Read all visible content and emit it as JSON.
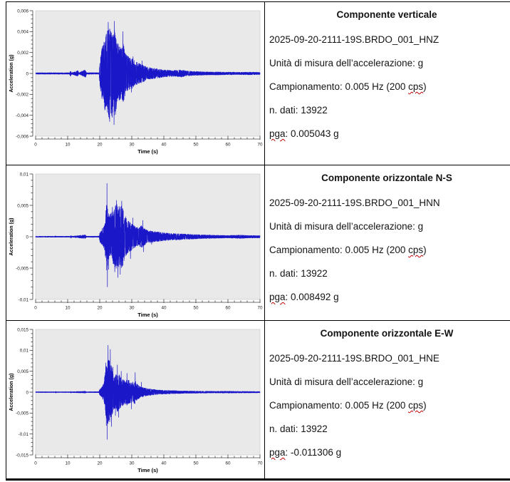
{
  "colors": {
    "table_border": "#000000",
    "waveform_blue": "#1a17c9",
    "plot_background": "#e9e9e9",
    "spellcheck_red": "#c00000",
    "text": "#141414"
  },
  "rows": [
    {
      "info": {
        "title": "Componente verticale",
        "filename": "2025-09-20-2111-19S.BRDO_001_HNZ",
        "unit": "Unità di misura dell’accelerazione: g",
        "sampling_prefix": "Campionamento: 0.005 Hz (200 ",
        "sampling_word": "cps",
        "sampling_suffix": ")",
        "n_dati": "n. dati: 13922",
        "pga_word": "pga",
        "pga_rest": ": 0.005043 g"
      }
    },
    {
      "info": {
        "title": "Componente orizzontale N-S",
        "filename": "2025-09-20-2111-19S.BRDO_001_HNN",
        "unit": "Unità di misura dell’accelerazione: g",
        "sampling_prefix": "Campionamento: 0.005 Hz (200 ",
        "sampling_word": "cps",
        "sampling_suffix": ")",
        "n_dati": "n. dati: 13922",
        "pga_word": "pga",
        "pga_rest": ": 0.008492 g"
      }
    },
    {
      "info": {
        "title": "Componente orizzontale E-W",
        "filename": "2025-09-20-2111-19S.BRDO_001_HNE",
        "unit": "Unità di misura dell’accelerazione: g",
        "sampling_prefix": "Campionamento: 0.005 Hz (200 ",
        "sampling_word": "cps",
        "sampling_suffix": ")",
        "n_dati": "n. dati: 13922",
        "pga_word": "pga",
        "pga_rest": ": -0.011306 g"
      }
    }
  ],
  "chart_data": [
    {
      "type": "line",
      "component": "vertical HNZ",
      "xlabel": "Time (s)",
      "ylabel": "Acceleration (g)",
      "xlim": [
        0,
        70
      ],
      "ylim": [
        -0.006,
        0.006
      ],
      "xtick_values": [
        0,
        10,
        20,
        30,
        40,
        50,
        60,
        70
      ],
      "xtick_labels": [
        "0",
        "10",
        "20",
        "30",
        "40",
        "50",
        "60",
        "70"
      ],
      "x_minor_step": 2,
      "ytick_values": [
        0.006,
        0.004,
        0.002,
        0,
        -0.002,
        -0.004,
        -0.006
      ],
      "ytick_labels": [
        "0,006",
        "0,004",
        "0,002",
        "0",
        "-0,002",
        "-0,004",
        "-0,006"
      ],
      "y_minor_per_major": 4,
      "pga_g": 0.005043,
      "line_color": "#1a17c9",
      "plot_bg": "#e9e9e9",
      "grid": false,
      "legend": false,
      "seed": 11,
      "dt": 0.02,
      "envelope": [
        [
          0,
          7e-05
        ],
        [
          10.6,
          7e-05
        ],
        [
          10.9,
          0.0003
        ],
        [
          11.2,
          7e-05
        ],
        [
          13.2,
          0.00028
        ],
        [
          13.5,
          7e-05
        ],
        [
          15.6,
          0.00038
        ],
        [
          15.9,
          7e-05
        ],
        [
          19.8,
          8e-05
        ],
        [
          20.05,
          0.0012
        ],
        [
          20.5,
          0.0022
        ],
        [
          21.2,
          0.003
        ],
        [
          22,
          0.0038
        ],
        [
          22.8,
          0.0044
        ],
        [
          23.5,
          0.0042
        ],
        [
          24.2,
          0.0038
        ],
        [
          24.7,
          0.0044
        ],
        [
          25.3,
          0.0032
        ],
        [
          26,
          0.0026
        ],
        [
          26.8,
          0.0024
        ],
        [
          27.4,
          0.003
        ],
        [
          28,
          0.0019
        ],
        [
          29,
          0.0016
        ],
        [
          30,
          0.0015
        ],
        [
          31,
          0.0012
        ],
        [
          32,
          0.001
        ],
        [
          33,
          0.0009
        ],
        [
          34,
          0.00075
        ],
        [
          35,
          0.0006
        ],
        [
          36,
          0.00055
        ],
        [
          37.5,
          0.00048
        ],
        [
          39,
          0.0004
        ],
        [
          40,
          0.00035
        ],
        [
          42,
          0.0003
        ],
        [
          44,
          0.00032
        ],
        [
          45.5,
          0.00035
        ],
        [
          47,
          0.00025
        ],
        [
          49,
          0.0002
        ],
        [
          51,
          0.00018
        ],
        [
          53,
          0.00015
        ],
        [
          55,
          0.00014
        ],
        [
          57,
          0.00015
        ],
        [
          59,
          0.00012
        ],
        [
          61,
          0.00013
        ],
        [
          63,
          0.00011
        ],
        [
          65,
          0.00012
        ],
        [
          67,
          0.00013
        ],
        [
          70,
          0.0001
        ]
      ],
      "spikes": [
        [
          22.65,
          0.0049
        ],
        [
          24.55,
          0.005
        ],
        [
          24.45,
          -0.0049
        ],
        [
          23.1,
          -0.0046
        ],
        [
          23.9,
          -0.0042
        ],
        [
          27.25,
          0.004
        ],
        [
          25.8,
          0.0028
        ],
        [
          29.9,
          -0.0018
        ],
        [
          30.4,
          0.0016
        ],
        [
          33.2,
          0.0012
        ],
        [
          21.6,
          -0.0035
        ]
      ]
    },
    {
      "type": "line",
      "component": "horizontal N-S HNN",
      "xlabel": "Time (s)",
      "ylabel": "Acceleration (g)",
      "xlim": [
        0,
        70
      ],
      "ylim": [
        -0.01,
        0.01
      ],
      "xtick_values": [
        0,
        10,
        20,
        30,
        40,
        50,
        60,
        70
      ],
      "xtick_labels": [
        "0",
        "10",
        "20",
        "30",
        "40",
        "50",
        "60",
        "70"
      ],
      "x_minor_step": 2,
      "ytick_values": [
        0.01,
        0.005,
        0,
        -0.005,
        -0.01
      ],
      "ytick_labels": [
        "0,01",
        "0,005",
        "0",
        "-0,005",
        "-0,01"
      ],
      "y_minor_per_major": 4,
      "pga_g": 0.008492,
      "line_color": "#1a17c9",
      "plot_bg": "#e9e9e9",
      "grid": false,
      "legend": false,
      "seed": 22,
      "dt": 0.02,
      "envelope": [
        [
          0,
          8e-05
        ],
        [
          6,
          8e-05
        ],
        [
          6.2,
          0.00015
        ],
        [
          6.4,
          8e-05
        ],
        [
          10.8,
          8e-05
        ],
        [
          11,
          0.00025
        ],
        [
          11.3,
          8e-05
        ],
        [
          15.5,
          0.0003
        ],
        [
          15.8,
          8e-05
        ],
        [
          19.8,
          0.0001
        ],
        [
          20.1,
          0.0009
        ],
        [
          20.8,
          0.0013
        ],
        [
          21.6,
          0.0022
        ],
        [
          22.1,
          0.0055
        ],
        [
          22.5,
          0.0048
        ],
        [
          23,
          0.0035
        ],
        [
          23.8,
          0.004
        ],
        [
          24.6,
          0.0048
        ],
        [
          25.4,
          0.0052
        ],
        [
          26.2,
          0.0048
        ],
        [
          27,
          0.005
        ],
        [
          27.6,
          0.0038
        ],
        [
          28.4,
          0.0028
        ],
        [
          29.2,
          0.0024
        ],
        [
          30,
          0.0022
        ],
        [
          31,
          0.0017
        ],
        [
          32,
          0.0014
        ],
        [
          33,
          0.0018
        ],
        [
          33.8,
          0.0014
        ],
        [
          35,
          0.001
        ],
        [
          36.5,
          0.0009
        ],
        [
          38,
          0.0008
        ],
        [
          40,
          0.00065
        ],
        [
          42,
          0.00055
        ],
        [
          44,
          0.0005
        ],
        [
          46,
          0.00045
        ],
        [
          48,
          0.0004
        ],
        [
          50,
          0.00035
        ],
        [
          52,
          0.0003
        ],
        [
          54,
          0.00028
        ],
        [
          57,
          0.00024
        ],
        [
          60,
          0.0002
        ],
        [
          62,
          0.00024
        ],
        [
          64,
          0.00028
        ],
        [
          66,
          0.0002
        ],
        [
          68,
          0.0002
        ],
        [
          70,
          0.00018
        ]
      ],
      "spikes": [
        [
          22.25,
          0.0085
        ],
        [
          22.4,
          -0.008
        ],
        [
          25.2,
          0.0058
        ],
        [
          26.85,
          0.0057
        ],
        [
          25.65,
          -0.0065
        ],
        [
          26.4,
          -0.006
        ],
        [
          24.7,
          -0.0056
        ],
        [
          23.95,
          0.0047
        ],
        [
          22.8,
          -0.0052
        ],
        [
          29.6,
          -0.0035
        ],
        [
          30.3,
          0.003
        ],
        [
          33.45,
          0.0026
        ],
        [
          33.7,
          -0.0024
        ],
        [
          36.2,
          -0.0012
        ],
        [
          21.9,
          0.0035
        ]
      ]
    },
    {
      "type": "line",
      "component": "horizontal E-W HNE",
      "xlabel": "Time (s)",
      "ylabel": "Acceleration (g)",
      "xlim": [
        0,
        70
      ],
      "ylim": [
        -0.015,
        0.015
      ],
      "xtick_values": [
        0,
        10,
        20,
        30,
        40,
        50,
        60,
        70
      ],
      "xtick_labels": [
        "0",
        "10",
        "20",
        "30",
        "40",
        "50",
        "60",
        "70"
      ],
      "x_minor_step": 2,
      "ytick_values": [
        0.015,
        0.01,
        0.005,
        0,
        -0.005,
        -0.01,
        -0.015
      ],
      "ytick_labels": [
        "0,015",
        "0,01",
        "0,005",
        "0",
        "-0,005",
        "-0,01",
        "-0,015"
      ],
      "y_minor_per_major": 4,
      "pga_g": -0.011306,
      "line_color": "#1a17c9",
      "plot_bg": "#e9e9e9",
      "grid": false,
      "legend": false,
      "seed": 33,
      "dt": 0.02,
      "envelope": [
        [
          0,
          0.0001
        ],
        [
          6.1,
          0.0001
        ],
        [
          6.3,
          0.0002
        ],
        [
          6.5,
          0.0001
        ],
        [
          10.8,
          0.0001
        ],
        [
          11,
          0.0002
        ],
        [
          11.3,
          0.0001
        ],
        [
          15.5,
          0.00022
        ],
        [
          15.8,
          0.0001
        ],
        [
          19.7,
          0.00012
        ],
        [
          20,
          0.0007
        ],
        [
          20.6,
          0.0012
        ],
        [
          21.2,
          0.002
        ],
        [
          21.7,
          0.0045
        ],
        [
          22.2,
          0.0075
        ],
        [
          22.8,
          0.0078
        ],
        [
          23.3,
          0.0072
        ],
        [
          23.8,
          0.0058
        ],
        [
          24.4,
          0.004
        ],
        [
          25,
          0.0042
        ],
        [
          25.6,
          0.0048
        ],
        [
          26.2,
          0.004
        ],
        [
          27,
          0.0034
        ],
        [
          27.8,
          0.0028
        ],
        [
          28.6,
          0.0032
        ],
        [
          29.4,
          0.0026
        ],
        [
          30.2,
          0.0024
        ],
        [
          31,
          0.0028
        ],
        [
          31.8,
          0.0018
        ],
        [
          32.6,
          0.0014
        ],
        [
          33.6,
          0.0011
        ],
        [
          35,
          0.00085
        ],
        [
          36.5,
          0.0007
        ],
        [
          38,
          0.00055
        ],
        [
          40,
          0.00045
        ],
        [
          42,
          0.0004
        ],
        [
          44,
          0.00035
        ],
        [
          46,
          0.0003
        ],
        [
          48,
          0.00027
        ],
        [
          50,
          0.00025
        ],
        [
          53,
          0.00022
        ],
        [
          56,
          0.0002
        ],
        [
          59,
          0.00022
        ],
        [
          62,
          0.0002
        ],
        [
          65,
          0.00018
        ],
        [
          70,
          0.00015
        ]
      ],
      "spikes": [
        [
          22.3,
          -0.0113
        ],
        [
          22.6,
          0.0112
        ],
        [
          23.3,
          0.0102
        ],
        [
          21.85,
          0.007
        ],
        [
          22.05,
          -0.008
        ],
        [
          23.65,
          -0.0082
        ],
        [
          24.9,
          -0.0056
        ],
        [
          25.5,
          0.0065
        ],
        [
          25.85,
          -0.006
        ],
        [
          28.5,
          0.0045
        ],
        [
          31.05,
          0.0047
        ],
        [
          26.7,
          0.005
        ],
        [
          24.1,
          0.006
        ],
        [
          29.9,
          -0.004
        ],
        [
          33,
          0.0024
        ]
      ]
    }
  ]
}
